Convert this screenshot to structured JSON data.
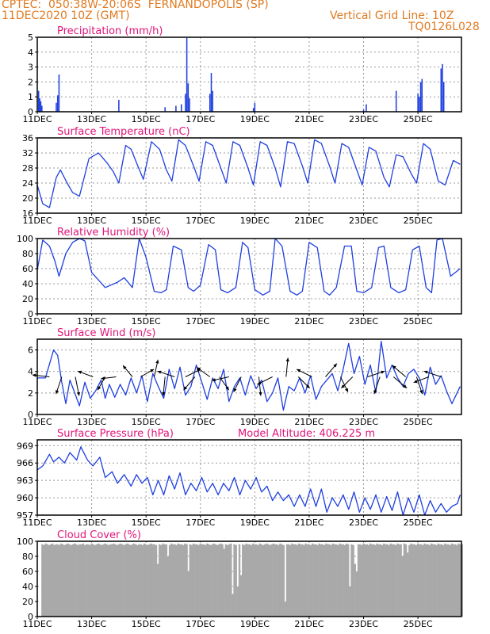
{
  "header": {
    "line1": "CPTEC:  050:38W-20:06S  FERNANDOPOLIS (SP)",
    "line2": "11DEC2020 10Z (GMT)",
    "grid_note": "Vertical Grid Line: 10Z",
    "code": "TQ0126L028"
  },
  "colors": {
    "header": "#e07b22",
    "title": "#e0157a",
    "series": "#1f3fe0",
    "cloud": "#a9a9a9",
    "grid": "#999999"
  },
  "chart_data": [
    {
      "type": "bar",
      "title": "Precipitation (mm/h)",
      "ylim": [
        0,
        5
      ],
      "yticks": [
        0,
        1,
        2,
        3,
        4,
        5
      ],
      "xticks": [
        "11DEC",
        "13DEC",
        "15DEC",
        "17DEC",
        "19DEC",
        "21DEC",
        "23DEC",
        "25DEC"
      ],
      "x_unit": "days after 11DEC 10Z",
      "bars": [
        [
          0.05,
          1.4
        ],
        [
          0.09,
          0.9
        ],
        [
          0.13,
          0.7
        ],
        [
          0.17,
          0.4
        ],
        [
          0.7,
          0.6
        ],
        [
          0.75,
          1.1
        ],
        [
          0.8,
          2.5
        ],
        [
          3.0,
          0.8
        ],
        [
          4.7,
          0.3
        ],
        [
          5.1,
          0.4
        ],
        [
          5.3,
          0.5
        ],
        [
          5.45,
          1.2
        ],
        [
          5.5,
          4.95
        ],
        [
          5.55,
          1.9
        ],
        [
          5.6,
          0.9
        ],
        [
          6.35,
          1.2
        ],
        [
          6.4,
          2.6
        ],
        [
          6.45,
          1.4
        ],
        [
          7.95,
          0.25
        ],
        [
          8.0,
          0.6
        ],
        [
          12.0,
          0.15
        ],
        [
          12.1,
          0.5
        ],
        [
          13.2,
          1.4
        ],
        [
          14.0,
          1.2
        ],
        [
          14.05,
          1.0
        ],
        [
          14.1,
          2.0
        ],
        [
          14.15,
          2.2
        ],
        [
          14.85,
          2.9
        ],
        [
          14.9,
          3.2
        ],
        [
          14.95,
          2.0
        ]
      ]
    },
    {
      "type": "line",
      "title": "Surface Temperature (nC)",
      "ylim": [
        16,
        36
      ],
      "yticks": [
        16,
        20,
        24,
        28,
        32,
        36
      ],
      "xticks": [
        "11DEC",
        "13DEC",
        "15DEC",
        "17DEC",
        "19DEC",
        "21DEC",
        "23DEC",
        "25DEC"
      ],
      "x": [
        0,
        0.2,
        0.45,
        0.7,
        0.85,
        1.1,
        1.3,
        1.55,
        1.9,
        2.25,
        2.55,
        2.8,
        3.0,
        3.25,
        3.45,
        3.7,
        3.9,
        4.2,
        4.5,
        4.75,
        4.95,
        5.2,
        5.45,
        5.75,
        5.95,
        6.2,
        6.45,
        6.75,
        6.95,
        7.2,
        7.45,
        7.75,
        7.95,
        8.2,
        8.45,
        8.75,
        8.95,
        9.2,
        9.45,
        9.75,
        9.95,
        10.2,
        10.45,
        10.75,
        10.95,
        11.2,
        11.45,
        11.75,
        11.95,
        12.2,
        12.45,
        12.75,
        12.95,
        13.2,
        13.45,
        13.75,
        13.95,
        14.2,
        14.45,
        14.75,
        15.0,
        15.3,
        15.55
      ],
      "values": [
        23.5,
        18.5,
        17.5,
        25.5,
        27.5,
        24.0,
        21.5,
        20.5,
        30.5,
        32.0,
        29.5,
        27.0,
        24.0,
        34.0,
        33.0,
        28.5,
        25.0,
        35.0,
        33.0,
        27.5,
        24.5,
        35.5,
        34.0,
        28.5,
        24.5,
        35.0,
        34.0,
        28.0,
        24.0,
        35.0,
        34.0,
        28.0,
        23.5,
        35.0,
        34.0,
        28.0,
        23.0,
        35.0,
        34.5,
        28.5,
        24.0,
        35.5,
        34.5,
        28.5,
        24.0,
        34.5,
        33.5,
        27.5,
        23.5,
        33.5,
        32.5,
        25.5,
        23.0,
        31.5,
        31.0,
        26.5,
        24.0,
        34.5,
        33.0,
        24.5,
        23.5,
        30.0,
        29.0
      ]
    },
    {
      "type": "line",
      "title": "Relative Humidity (%)",
      "ylim": [
        0,
        100
      ],
      "yticks": [
        0,
        20,
        40,
        60,
        80,
        100
      ],
      "xticks": [
        "11DEC",
        "13DEC",
        "15DEC",
        "17DEC",
        "19DEC",
        "21DEC",
        "23DEC",
        "25DEC"
      ],
      "x": [
        0,
        0.2,
        0.45,
        0.65,
        0.8,
        1.05,
        1.3,
        1.55,
        1.75,
        2.0,
        2.5,
        2.95,
        3.2,
        3.5,
        3.75,
        4.0,
        4.3,
        4.55,
        4.75,
        5.0,
        5.3,
        5.55,
        5.75,
        6.0,
        6.3,
        6.55,
        6.75,
        7.0,
        7.3,
        7.55,
        7.75,
        8.0,
        8.3,
        8.55,
        8.75,
        9.0,
        9.3,
        9.55,
        9.75,
        10.0,
        10.3,
        10.55,
        10.75,
        11.0,
        11.3,
        11.55,
        11.75,
        12.0,
        12.3,
        12.55,
        12.75,
        13.0,
        13.3,
        13.55,
        13.8,
        14.05,
        14.3,
        14.5,
        14.7,
        14.9,
        15.2,
        15.55
      ],
      "values": [
        58,
        98,
        90,
        70,
        50,
        80,
        95,
        100,
        97,
        55,
        35,
        42,
        48,
        35,
        100,
        75,
        30,
        28,
        32,
        90,
        85,
        35,
        30,
        38,
        92,
        85,
        32,
        28,
        35,
        95,
        88,
        32,
        25,
        30,
        100,
        90,
        30,
        25,
        30,
        95,
        88,
        30,
        25,
        35,
        90,
        90,
        30,
        28,
        35,
        88,
        90,
        35,
        28,
        32,
        85,
        90,
        35,
        28,
        98,
        100,
        50,
        60
      ]
    },
    {
      "type": "line",
      "title": "Surface Wind (m/s)",
      "ylim": [
        0,
        7
      ],
      "yticks": [
        0,
        2,
        4,
        6
      ],
      "xticks": [
        "11DEC",
        "13DEC",
        "15DEC",
        "17DEC",
        "19DEC",
        "21DEC",
        "23DEC",
        "25DEC"
      ],
      "x": [
        0,
        0.3,
        0.6,
        0.75,
        0.9,
        1.05,
        1.2,
        1.35,
        1.55,
        1.75,
        1.95,
        2.15,
        2.35,
        2.5,
        2.65,
        2.85,
        3.05,
        3.25,
        3.45,
        3.65,
        3.85,
        4.05,
        4.25,
        4.45,
        4.65,
        4.85,
        5.05,
        5.25,
        5.45,
        5.65,
        5.85,
        6.05,
        6.25,
        6.45,
        6.65,
        6.85,
        7.05,
        7.25,
        7.45,
        7.65,
        7.85,
        8.05,
        8.25,
        8.45,
        8.65,
        8.85,
        9.05,
        9.25,
        9.45,
        9.65,
        9.85,
        10.05,
        10.25,
        10.45,
        10.65,
        10.85,
        11.05,
        11.25,
        11.45,
        11.65,
        11.85,
        12.05,
        12.25,
        12.45,
        12.65,
        12.85,
        13.05,
        13.25,
        13.45,
        13.65,
        13.85,
        14.05,
        14.25,
        14.45,
        14.65,
        14.85,
        15.05,
        15.25,
        15.55
      ],
      "values": [
        3.4,
        3.4,
        6.0,
        5.5,
        3.0,
        1.0,
        3.2,
        2.2,
        0.8,
        3.0,
        1.5,
        2.2,
        3.2,
        1.5,
        2.8,
        1.6,
        2.8,
        1.8,
        3.4,
        2.0,
        3.6,
        1.2,
        3.8,
        2.6,
        1.5,
        4.2,
        2.4,
        4.4,
        1.8,
        2.6,
        4.6,
        3.0,
        1.4,
        3.4,
        2.4,
        4.2,
        1.2,
        2.6,
        3.4,
        1.8,
        3.6,
        2.4,
        3.2,
        1.2,
        2.0,
        3.4,
        0.4,
        2.6,
        2.2,
        3.4,
        2.0,
        3.6,
        1.4,
        2.6,
        3.2,
        3.8,
        2.2,
        4.2,
        6.6,
        3.8,
        5.4,
        2.8,
        4.6,
        2.0,
        6.8,
        3.4,
        4.6,
        3.4,
        2.6,
        3.8,
        4.2,
        3.4,
        1.8,
        4.4,
        2.8,
        3.6,
        2.2,
        1.0,
        2.6
      ],
      "vectors": [
        [
          0.45,
          -0.9,
          0.1
        ],
        [
          0.9,
          -0.3,
          -0.9
        ],
        [
          1.4,
          0.2,
          -1
        ],
        [
          2.05,
          -0.8,
          0.3
        ],
        [
          2.5,
          -0.4,
          -0.7
        ],
        [
          2.9,
          -0.8,
          -0.1
        ],
        [
          3.5,
          -0.5,
          0.6
        ],
        [
          3.8,
          0.7,
          0.4
        ],
        [
          4.3,
          0.2,
          0.9
        ],
        [
          4.7,
          -0.1,
          -1
        ],
        [
          5.05,
          -0.9,
          0.3
        ],
        [
          5.45,
          0.8,
          0.4
        ],
        [
          5.8,
          -0.6,
          -0.7
        ],
        [
          6.35,
          -0.7,
          0.5
        ],
        [
          6.7,
          0.5,
          -0.7
        ],
        [
          7.05,
          -0.9,
          -0.2
        ],
        [
          7.5,
          -0.4,
          -0.8
        ],
        [
          8.15,
          0.1,
          -1
        ],
        [
          8.65,
          -0.8,
          -0.4
        ],
        [
          9.15,
          0.1,
          1
        ],
        [
          9.6,
          0.6,
          -0.6
        ],
        [
          10.1,
          -0.8,
          0.4
        ],
        [
          10.6,
          0.6,
          0.7
        ],
        [
          11.15,
          0.4,
          -0.8
        ],
        [
          11.6,
          -0.6,
          -0.6
        ],
        [
          12.15,
          0.9,
          0.3
        ],
        [
          12.6,
          -0.3,
          -0.9
        ],
        [
          13.1,
          0.7,
          -0.6
        ],
        [
          13.55,
          -0.7,
          0.6
        ],
        [
          13.95,
          0.3,
          -0.9
        ],
        [
          14.4,
          -0.8,
          -0.3
        ],
        [
          14.85,
          -0.9,
          0.3
        ]
      ]
    },
    {
      "type": "line",
      "title": "Surface Pressure (hPa)",
      "annotation": "Model Altitude: 406.225  m",
      "ylim": [
        957,
        970
      ],
      "yticks": [
        957,
        960,
        963,
        966,
        969
      ],
      "xticks": [
        "11DEC",
        "13DEC",
        "15DEC",
        "17DEC",
        "19DEC",
        "21DEC",
        "23DEC",
        "25DEC"
      ],
      "x": [
        0,
        0.2,
        0.45,
        0.6,
        0.8,
        1.0,
        1.2,
        1.45,
        1.6,
        1.85,
        2.05,
        2.3,
        2.5,
        2.75,
        2.95,
        3.2,
        3.45,
        3.65,
        3.85,
        4.05,
        4.25,
        4.45,
        4.65,
        4.85,
        5.05,
        5.25,
        5.45,
        5.65,
        5.85,
        6.05,
        6.25,
        6.45,
        6.65,
        6.85,
        7.05,
        7.25,
        7.45,
        7.65,
        7.85,
        8.05,
        8.25,
        8.45,
        8.65,
        8.85,
        9.05,
        9.25,
        9.45,
        9.65,
        9.85,
        10.05,
        10.25,
        10.45,
        10.65,
        10.85,
        11.05,
        11.25,
        11.45,
        11.65,
        11.85,
        12.05,
        12.25,
        12.45,
        12.65,
        12.85,
        13.05,
        13.25,
        13.45,
        13.65,
        13.85,
        14.05,
        14.25,
        14.45,
        14.65,
        14.85,
        15.05,
        15.25,
        15.45,
        15.55
      ],
      "values": [
        964.8,
        965.5,
        967.5,
        966.2,
        967.0,
        966.0,
        967.8,
        966.5,
        968.8,
        966.5,
        965.5,
        967.0,
        963.5,
        964.5,
        962.5,
        964.0,
        962.0,
        964.0,
        962.5,
        963.5,
        960.5,
        963.0,
        960.5,
        963.8,
        961.5,
        964.3,
        960.5,
        962.5,
        961.2,
        963.5,
        961.0,
        962.5,
        960.5,
        962.5,
        961.2,
        963.5,
        960.5,
        963.0,
        961.5,
        963.5,
        961.0,
        962.0,
        959.5,
        961.0,
        959.5,
        960.5,
        958.5,
        960.5,
        958.5,
        961.5,
        958.5,
        961.5,
        957.5,
        960.0,
        958.5,
        960.5,
        958.0,
        961.0,
        957.5,
        960.0,
        958.0,
        960.5,
        957.5,
        960.2,
        957.8,
        961.0,
        957.0,
        960.0,
        957.5,
        960.5,
        956.8,
        959.5,
        957.5,
        959.0,
        957.5,
        958.5,
        959.0,
        960.5
      ]
    },
    {
      "type": "bar",
      "title": "Cloud Cover (%)",
      "ylim": [
        0,
        100
      ],
      "yticks": [
        0,
        20,
        40,
        60,
        80,
        100
      ],
      "xticks": [
        "11DEC",
        "13DEC",
        "15DEC",
        "17DEC",
        "19DEC",
        "21DEC",
        "23DEC",
        "25DEC"
      ],
      "x_start": 0.15,
      "x_step": 0.0625,
      "values": [
        96,
        95,
        97,
        96,
        95,
        96,
        97,
        95,
        96,
        96,
        95,
        97,
        96,
        95,
        96,
        97,
        96,
        95,
        96,
        97,
        96,
        95,
        96,
        96,
        97,
        95,
        96,
        96,
        95,
        97,
        96,
        95,
        96,
        97,
        96,
        95,
        96,
        97,
        96,
        95,
        96,
        96,
        97,
        96,
        95,
        96,
        97,
        96,
        95,
        96,
        97,
        96,
        95,
        96,
        97,
        96,
        95,
        96,
        96,
        95,
        97,
        96,
        95,
        96,
        97,
        96,
        96,
        95,
        70,
        96,
        95,
        97,
        96,
        96,
        80,
        95,
        97,
        96,
        96,
        95,
        97,
        96,
        96,
        95,
        97,
        96,
        60,
        96,
        95,
        97,
        96,
        96,
        95,
        97,
        96,
        96,
        95,
        97,
        96,
        95,
        96,
        97,
        96,
        95,
        96,
        97,
        96,
        90,
        96,
        95,
        96,
        97,
        30,
        96,
        95,
        40,
        96,
        55,
        96,
        95,
        97,
        96,
        96,
        95,
        97,
        96,
        96,
        95,
        97,
        96,
        95,
        96,
        97,
        96,
        95,
        96,
        97,
        96,
        96,
        95,
        97,
        96,
        95,
        20,
        96,
        96,
        95,
        97,
        96,
        96,
        95,
        97,
        96,
        96,
        95,
        97,
        96,
        96,
        95,
        97,
        96,
        96,
        95,
        97,
        96,
        96,
        95,
        97,
        96,
        96,
        95,
        97,
        96,
        96,
        95,
        97,
        96,
        96,
        95,
        97,
        96,
        40,
        96,
        95,
        70,
        60,
        96,
        96,
        95,
        97,
        96,
        96,
        95,
        97,
        96,
        96,
        95,
        97,
        96,
        96,
        95,
        97,
        96,
        96,
        95,
        97,
        96,
        96,
        95,
        97,
        96,
        96,
        80,
        97,
        96,
        85,
        95,
        97,
        96,
        96,
        95,
        97,
        96,
        96,
        95,
        97,
        96,
        96,
        95,
        97,
        96,
        96,
        95,
        97,
        96,
        96,
        95,
        97,
        96,
        96,
        95,
        97,
        96,
        96,
        95,
        97,
        96,
        96,
        95
      ]
    }
  ]
}
